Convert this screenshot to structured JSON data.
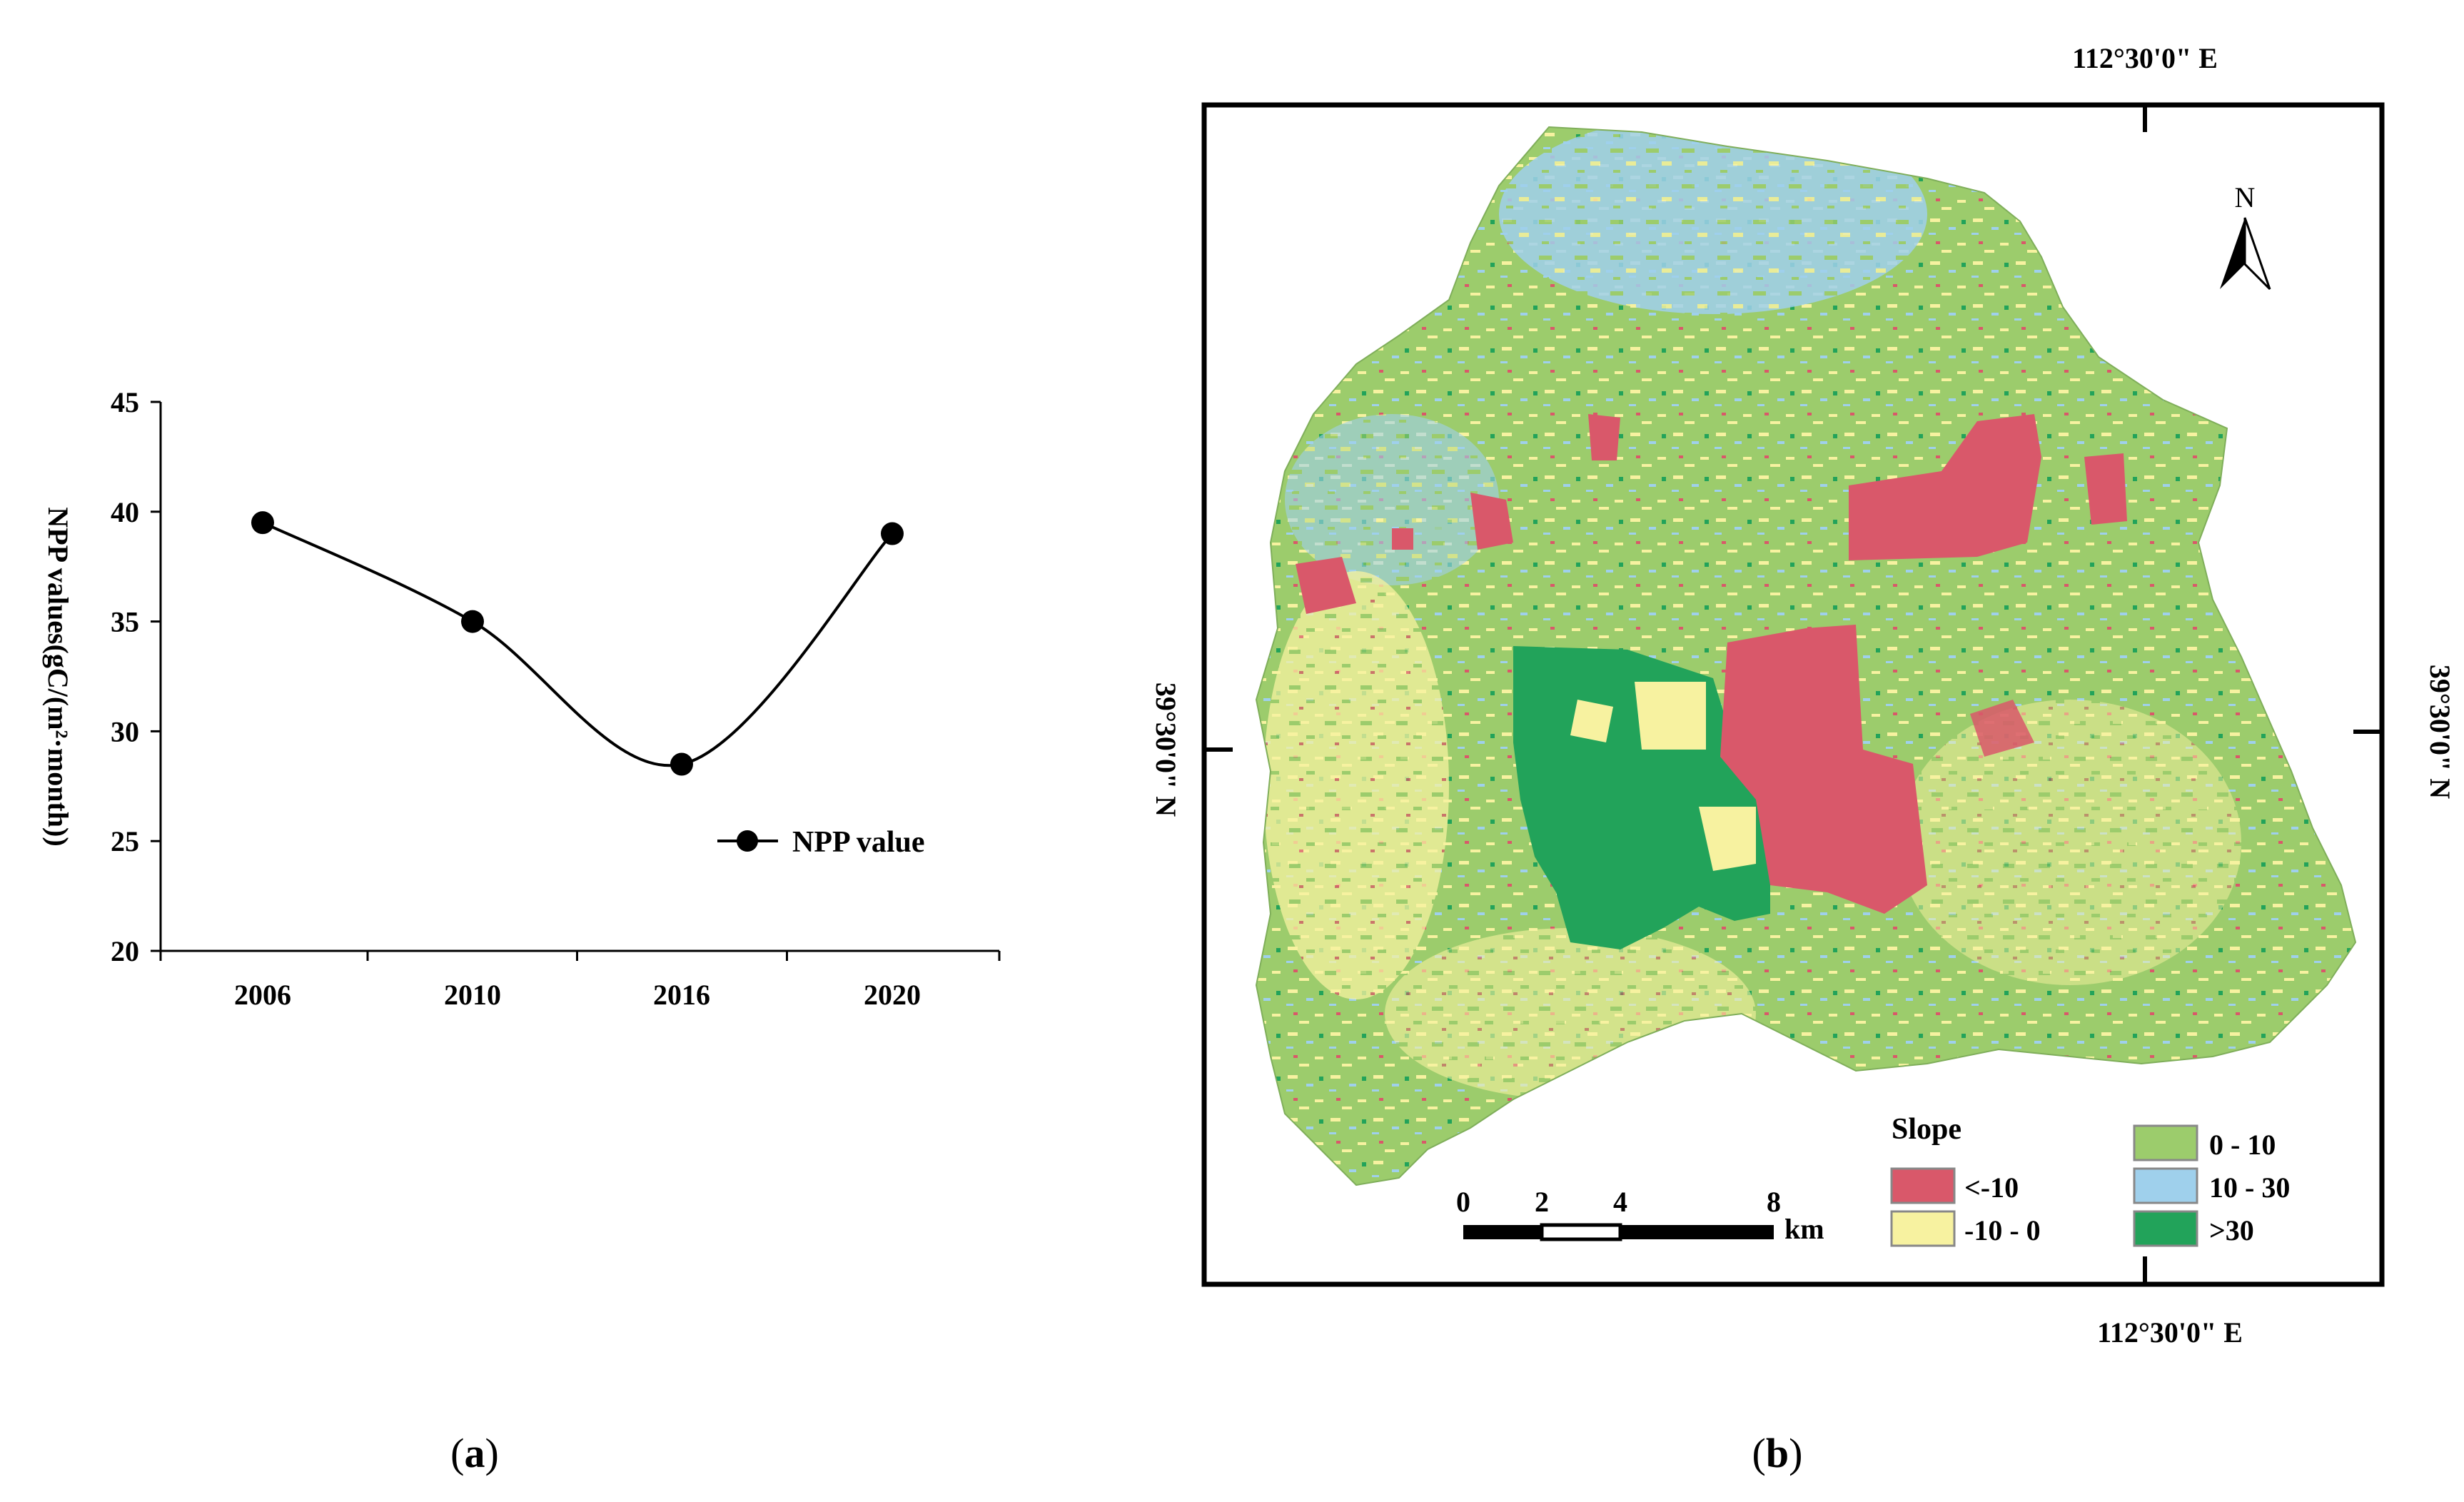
{
  "panels": {
    "a_label": "a",
    "b_label": "b"
  },
  "chart_data": [
    {
      "type": "line",
      "title": "",
      "xlabel": "",
      "ylabel": "NPP values(gC/(m²·month))",
      "categories": [
        "2006",
        "2010",
        "2016",
        "2020"
      ],
      "series": [
        {
          "name": "NPP value",
          "values": [
            39.5,
            35.0,
            28.5,
            39.0
          ]
        }
      ],
      "ylim": [
        20,
        45
      ],
      "yticks": [
        "20",
        "25",
        "30",
        "35",
        "40",
        "45"
      ],
      "smooth": true,
      "grid": false,
      "legend_position": "right"
    }
  ],
  "map": {
    "top_coord": "112°30'0\" E",
    "bottom_coord": "112°30'0\" E",
    "left_coord": "39°30'0\" N",
    "right_coord": "39°30'0\" N",
    "north_label": "N",
    "legend_title": "Slope",
    "legend_items": [
      {
        "label": "<-10",
        "color": "#d9586a"
      },
      {
        "label": "-10 - 0",
        "color": "#f7f2a0"
      },
      {
        "label": "0 - 10",
        "color": "#9ccc6c"
      },
      {
        "label": "10 - 30",
        "color": "#9fd0ec"
      },
      {
        "label": ">30",
        "color": "#22a35a"
      }
    ],
    "scale_ticks": [
      "0",
      "2",
      "4",
      "8"
    ],
    "scale_unit": "km"
  },
  "colors": {
    "line": "#000000",
    "neg_slope": "#d9586a",
    "flat_slope": "#f7f2a0",
    "gentle_slope": "#9ccc6c",
    "moderate_slope": "#9fd0ec",
    "steep_slope": "#22a35a"
  }
}
